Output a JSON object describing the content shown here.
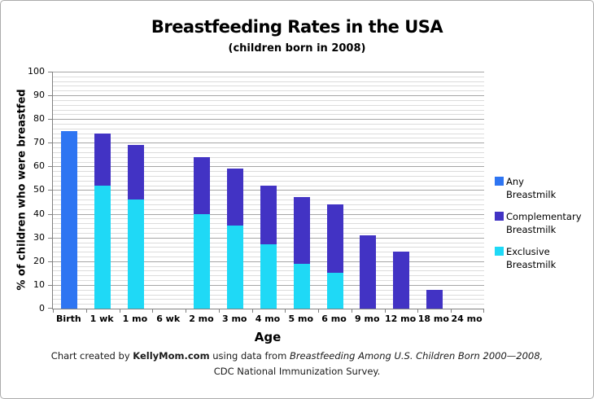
{
  "chart_data": {
    "type": "bar",
    "stacked": true,
    "title": "Breastfeeding Rates in the USA",
    "subtitle": "(children born in 2008)",
    "xlabel": "Age",
    "ylabel": "% of children who were breastfed",
    "ylim": [
      0,
      100
    ],
    "y_tick_step": 10,
    "y_minor_step": 2,
    "grid": "horizontal, minor every 2 and major every 10",
    "legend_position": "right",
    "categories": [
      "Birth",
      "1 wk",
      "1 mo",
      "6 wk",
      "2 mo",
      "3 mo",
      "4 mo",
      "5 mo",
      "6 mo",
      "9 mo",
      "12 mo",
      "18 mo",
      "24 mo"
    ],
    "series": [
      {
        "name": "Any Breastmilk",
        "color": "#2E75F2",
        "values": [
          75,
          0,
          0,
          0,
          0,
          0,
          0,
          0,
          0,
          0,
          0,
          0,
          0
        ]
      },
      {
        "name": "Exclusive Breastmilk",
        "color": "#1FD9F6",
        "values": [
          0,
          52,
          46,
          0,
          40,
          35,
          27,
          19,
          15,
          0,
          0,
          0,
          0
        ]
      },
      {
        "name": "Complementary Breastmilk",
        "color": "#4233C4",
        "values": [
          0,
          22,
          23,
          0,
          24,
          24,
          25,
          28,
          29,
          31,
          24,
          8,
          0
        ]
      }
    ],
    "stack_totals": [
      75,
      74,
      69,
      0,
      64,
      59,
      52,
      47,
      44,
      31,
      24,
      8,
      0
    ],
    "legend": [
      {
        "name": "Any Breastmilk",
        "lines": [
          "Any",
          "Breastmilk"
        ],
        "color": "#2E75F2"
      },
      {
        "name": "Complementary Breastmilk",
        "lines": [
          "Complementary",
          "Breastmilk"
        ],
        "color": "#4233C4"
      },
      {
        "name": "Exclusive Breastmilk",
        "lines": [
          "Exclusive",
          "Breastmilk"
        ],
        "color": "#1FD9F6"
      }
    ]
  },
  "footer": {
    "caption_prefix": "Chart created by ",
    "caption_brand": "KellyMom.com",
    "caption_middle": " using data from ",
    "caption_source": "Breastfeeding Among U.S. Children Born 2000—2008,",
    "caption_line2": "CDC National Immunization Survey."
  }
}
